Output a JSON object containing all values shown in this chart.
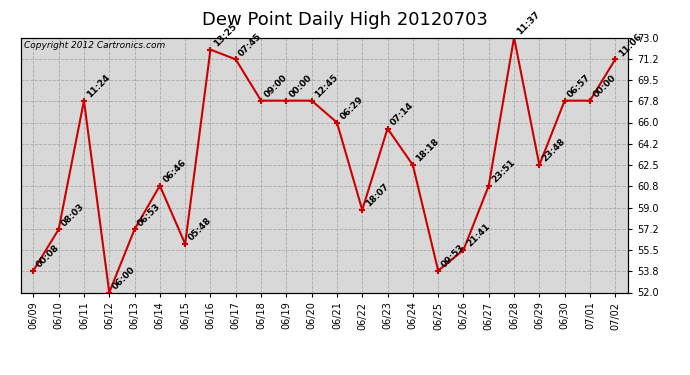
{
  "title": "Dew Point Daily High 20120703",
  "copyright": "Copyright 2012 Cartronics.com",
  "dates": [
    "06/09",
    "06/10",
    "06/11",
    "06/12",
    "06/13",
    "06/14",
    "06/15",
    "06/16",
    "06/17",
    "06/18",
    "06/19",
    "06/20",
    "06/21",
    "06/22",
    "06/23",
    "06/24",
    "06/25",
    "06/26",
    "06/27",
    "06/28",
    "06/29",
    "06/30",
    "07/01",
    "07/02"
  ],
  "values": [
    53.8,
    57.2,
    67.8,
    52.0,
    57.2,
    60.8,
    56.0,
    72.0,
    71.2,
    67.8,
    67.8,
    67.8,
    66.0,
    58.8,
    65.5,
    62.5,
    53.8,
    55.5,
    60.8,
    73.0,
    62.5,
    67.8,
    67.8,
    71.2
  ],
  "time_labels": [
    "00:08",
    "08:03",
    "11:24",
    "06:00",
    "06:53",
    "06:46",
    "05:48",
    "13:25",
    "07:45",
    "09:00",
    "00:00",
    "12:45",
    "06:29",
    "18:07",
    "07:14",
    "18:18",
    "09:53",
    "21:41",
    "23:51",
    "11:37",
    "23:48",
    "06:57",
    "00:00",
    "11:06"
  ],
  "ylim": [
    52.0,
    73.0
  ],
  "ytick_vals": [
    52.0,
    53.8,
    55.5,
    57.2,
    59.0,
    60.8,
    62.5,
    64.2,
    66.0,
    67.8,
    69.5,
    71.2,
    73.0
  ],
  "line_color": "#cc0000",
  "bg_color": "#ffffff",
  "plot_bg_color": "#d8d8d8",
  "grid_color": "#aaaaaa",
  "title_fontsize": 13,
  "annot_fontsize": 6.5,
  "tick_fontsize": 7,
  "copyright_fontsize": 6.5
}
